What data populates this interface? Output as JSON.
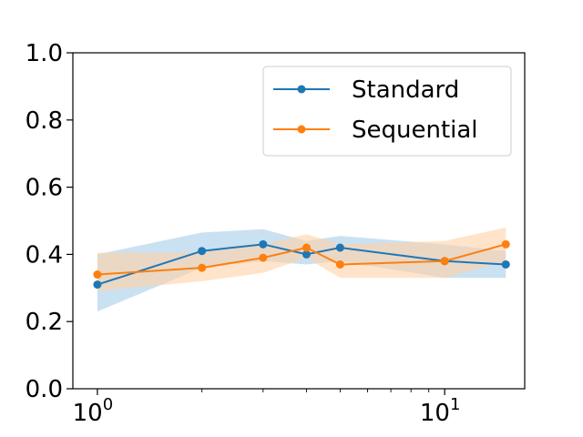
{
  "chart_data": {
    "type": "line",
    "xscale": "log",
    "xlim": [
      0.85,
      17
    ],
    "ylim": [
      0.0,
      1.0
    ],
    "grid": false,
    "legend_position": "top-right",
    "xlabel": "",
    "ylabel": "",
    "x_ticks": [
      {
        "value": 1,
        "base": "10",
        "exp": "0"
      },
      {
        "value": 10,
        "base": "10",
        "exp": "1"
      }
    ],
    "y_ticks": [
      {
        "value": 0.0,
        "label": "0.0"
      },
      {
        "value": 0.2,
        "label": "0.2"
      },
      {
        "value": 0.4,
        "label": "0.4"
      },
      {
        "value": 0.6,
        "label": "0.6"
      },
      {
        "value": 0.8,
        "label": "0.8"
      },
      {
        "value": 1.0,
        "label": "1.0"
      }
    ],
    "x": [
      1,
      2,
      3,
      4,
      5,
      10,
      15
    ],
    "series": [
      {
        "name": "Standard",
        "color": "#1f77b4",
        "band_color": "#a6cde8",
        "values": [
          0.31,
          0.41,
          0.43,
          0.4,
          0.42,
          0.38,
          0.37
        ],
        "lower": [
          0.23,
          0.36,
          0.38,
          0.37,
          0.38,
          0.33,
          0.33
        ],
        "upper": [
          0.4,
          0.465,
          0.475,
          0.44,
          0.455,
          0.43,
          0.41
        ]
      },
      {
        "name": "Sequential",
        "color": "#ff7f0e",
        "band_color": "#ffd2a8",
        "values": [
          0.34,
          0.36,
          0.39,
          0.42,
          0.37,
          0.38,
          0.43
        ],
        "lower": [
          0.29,
          0.32,
          0.345,
          0.39,
          0.33,
          0.33,
          0.38
        ],
        "upper": [
          0.405,
          0.405,
          0.43,
          0.46,
          0.43,
          0.44,
          0.48
        ]
      }
    ]
  }
}
